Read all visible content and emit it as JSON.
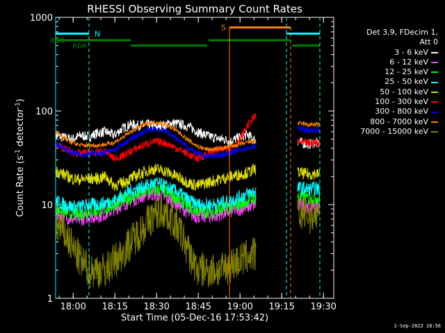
{
  "chart_data": {
    "type": "line",
    "title": "RHESSI Observing Summary Count Rates",
    "xlabel": "Start Time (05-Dec-16 17:53:42)",
    "ylabel_prefix": "Count Rate (s",
    "ylabel_sup1": "-1",
    "ylabel_mid": " detector",
    "ylabel_sup2": "-1",
    "ylabel_suffix": ")",
    "yscale": "log",
    "ylim": [
      1,
      1000
    ],
    "xlim_minutes": [
      0,
      100
    ],
    "x_ticks": [
      {
        "minute": 6.3,
        "label": "18:00"
      },
      {
        "minute": 21.3,
        "label": "18:15"
      },
      {
        "minute": 36.3,
        "label": "18:30"
      },
      {
        "minute": 51.3,
        "label": "18:45"
      },
      {
        "minute": 66.3,
        "label": "19:00"
      },
      {
        "minute": 81.3,
        "label": "19:15"
      },
      {
        "minute": 96.3,
        "label": "19:30"
      }
    ],
    "y_ticks": [
      {
        "value": 1,
        "label": "1"
      },
      {
        "value": 10,
        "label": "10"
      },
      {
        "value": 100,
        "label": "100"
      },
      {
        "value": 1000,
        "label": "1000"
      }
    ],
    "legend": {
      "header1": "Det 3,9, FDecim 1,",
      "header2": "Att 0",
      "placement": "right"
    },
    "series": [
      {
        "name": "3 - 6 keV",
        "color": "#ffffff",
        "x": [
          0,
          3,
          6,
          9,
          12,
          15,
          18,
          21,
          24,
          27,
          30,
          33,
          36,
          39,
          42,
          45,
          48,
          51,
          54,
          57,
          60,
          63,
          66,
          69,
          72
        ],
        "values": [
          55,
          52,
          50,
          55,
          53,
          58,
          60,
          55,
          65,
          72,
          70,
          72,
          68,
          70,
          75,
          72,
          68,
          60,
          55,
          52,
          50,
          48,
          52,
          56,
          48
        ],
        "x2": [
          87,
          89,
          91,
          93,
          95
        ],
        "values2": [
          48,
          45,
          44,
          46,
          44
        ]
      },
      {
        "name": "6 - 12 keV",
        "color": "#ff40ff",
        "x": [
          0,
          3,
          6,
          9,
          12,
          15,
          18,
          21,
          24,
          27,
          30,
          33,
          36,
          39,
          42,
          45,
          48,
          51,
          54,
          57,
          60,
          63,
          66,
          69,
          72
        ],
        "values": [
          8,
          7.5,
          7,
          7,
          7.5,
          7.5,
          8,
          9,
          10,
          11,
          12,
          13,
          13,
          12,
          11,
          9.5,
          8,
          7.5,
          7.5,
          7.5,
          8,
          8.5,
          9,
          9.5,
          10
        ],
        "x2": [
          87,
          89,
          91,
          93,
          95
        ],
        "values2": [
          10,
          10,
          9.5,
          10,
          9.5
        ]
      },
      {
        "name": "12 - 25 keV",
        "color": "#00ff00",
        "x": [
          0,
          3,
          6,
          9,
          12,
          15,
          18,
          21,
          24,
          27,
          30,
          33,
          36,
          39,
          42,
          45,
          48,
          51,
          54,
          57,
          60,
          63,
          66,
          69,
          72
        ],
        "values": [
          9,
          8.5,
          8,
          8,
          8.5,
          8.5,
          9,
          10,
          11,
          12,
          13,
          14,
          14.5,
          14,
          12.5,
          11,
          9.5,
          8.5,
          8.5,
          8.5,
          9,
          9.5,
          10,
          11,
          12
        ],
        "x2": [
          87,
          89,
          91,
          93,
          95
        ],
        "values2": [
          12,
          12,
          11.5,
          12,
          11.5
        ]
      },
      {
        "name": "25 - 50 keV",
        "color": "#00ffff",
        "x": [
          0,
          3,
          6,
          9,
          12,
          15,
          18,
          21,
          24,
          27,
          30,
          33,
          36,
          39,
          42,
          45,
          48,
          51,
          54,
          57,
          60,
          63,
          66,
          69,
          72
        ],
        "values": [
          11,
          10,
          9.5,
          9.5,
          10,
          10,
          10.5,
          11,
          12.5,
          14,
          15,
          16,
          17,
          16,
          14.5,
          13,
          11,
          10,
          10,
          10,
          10.5,
          11,
          12,
          13,
          14
        ],
        "x2": [
          87,
          89,
          91,
          93,
          95
        ],
        "values2": [
          15,
          15,
          14.5,
          15,
          14.5
        ]
      },
      {
        "name": "50 - 100 keV",
        "color": "#e0e000",
        "x": [
          0,
          3,
          6,
          9,
          12,
          15,
          18,
          21,
          24,
          27,
          30,
          33,
          36,
          39,
          42,
          45,
          48,
          51,
          54,
          57,
          60,
          63,
          66,
          69,
          72
        ],
        "values": [
          23,
          21,
          19,
          18.5,
          19,
          19,
          20,
          16,
          17,
          19,
          21,
          23,
          24,
          23,
          21,
          19,
          17,
          16,
          17,
          18,
          19,
          20,
          21,
          22,
          24
        ],
        "x2": [
          87,
          89,
          91,
          93,
          95
        ],
        "values2": [
          22,
          21.5,
          21,
          21.5,
          21
        ]
      },
      {
        "name": "100 - 300 keV",
        "color": "#ff0000",
        "x": [
          0,
          3,
          6,
          9,
          12,
          15,
          18,
          21,
          24,
          27,
          30,
          33,
          36,
          39,
          42,
          45,
          48,
          51,
          54,
          57,
          60,
          63,
          66,
          69,
          72
        ],
        "values": [
          44,
          40,
          36,
          35,
          36,
          36,
          37,
          31,
          33,
          37,
          41,
          45,
          47,
          46,
          42,
          38,
          34,
          31,
          34,
          37,
          39,
          41,
          47,
          70,
          90
        ],
        "x2": [
          87,
          89,
          91,
          93,
          95
        ],
        "values2": [
          47,
          46,
          45,
          46,
          45
        ]
      },
      {
        "name": "300 - 800 keV",
        "color": "#0000ff",
        "x": [
          0,
          3,
          6,
          9,
          12,
          15,
          18,
          21,
          24,
          27,
          30,
          33,
          36,
          39,
          42,
          45,
          48,
          51,
          54,
          57,
          60,
          63,
          66,
          69,
          72
        ],
        "values": [
          45,
          40,
          36,
          35,
          35,
          35,
          36,
          38,
          43,
          50,
          56,
          62,
          64,
          62,
          55,
          47,
          40,
          35,
          33,
          33,
          34,
          36,
          38,
          40,
          42
        ],
        "x2": [
          87,
          89,
          91,
          93,
          95
        ],
        "values2": [
          65,
          64,
          62,
          63,
          62
        ]
      },
      {
        "name": "800 - 7000 keV",
        "color": "#ff8000",
        "x": [
          0,
          3,
          6,
          9,
          12,
          15,
          18,
          21,
          24,
          27,
          30,
          33,
          36,
          39,
          42,
          45,
          48,
          51,
          54,
          57,
          60,
          63,
          66,
          69,
          72
        ],
        "values": [
          60,
          52,
          46,
          43,
          43,
          43,
          44,
          46,
          52,
          60,
          67,
          73,
          76,
          73,
          66,
          57,
          48,
          42,
          39,
          39,
          40,
          42,
          44,
          46,
          48
        ],
        "x2": [
          87,
          89,
          91,
          93,
          95
        ],
        "values2": [
          74,
          73,
          71,
          72,
          71
        ]
      },
      {
        "name": "7000 - 15000 keV",
        "color": "#808000",
        "x": [
          0,
          3,
          6,
          9,
          12,
          15,
          18,
          21,
          24,
          27,
          30,
          33,
          36,
          39,
          42,
          45,
          48,
          51,
          54,
          57,
          60,
          63,
          66,
          69,
          72
        ],
        "values": [
          6,
          5,
          3.5,
          2.5,
          2,
          2,
          2,
          2.5,
          3,
          4,
          5,
          6.5,
          8,
          8.5,
          7,
          5,
          3,
          2,
          2,
          2,
          2,
          2.3,
          2.5,
          2.8,
          3
        ],
        "x2": [
          87,
          89,
          91,
          93,
          95
        ],
        "values2": [
          8,
          8,
          7.5,
          8,
          7.5
        ]
      }
    ],
    "annotations": {
      "N": "N",
      "S": "S",
      "RD0": "RD0",
      "RD6": "RD6"
    },
    "colors": {
      "saa": "#ff8000",
      "night": "#00ffff",
      "decim": "#008000"
    }
  },
  "footer": {
    "timestamp": "1-Sep-2022 18:56"
  }
}
